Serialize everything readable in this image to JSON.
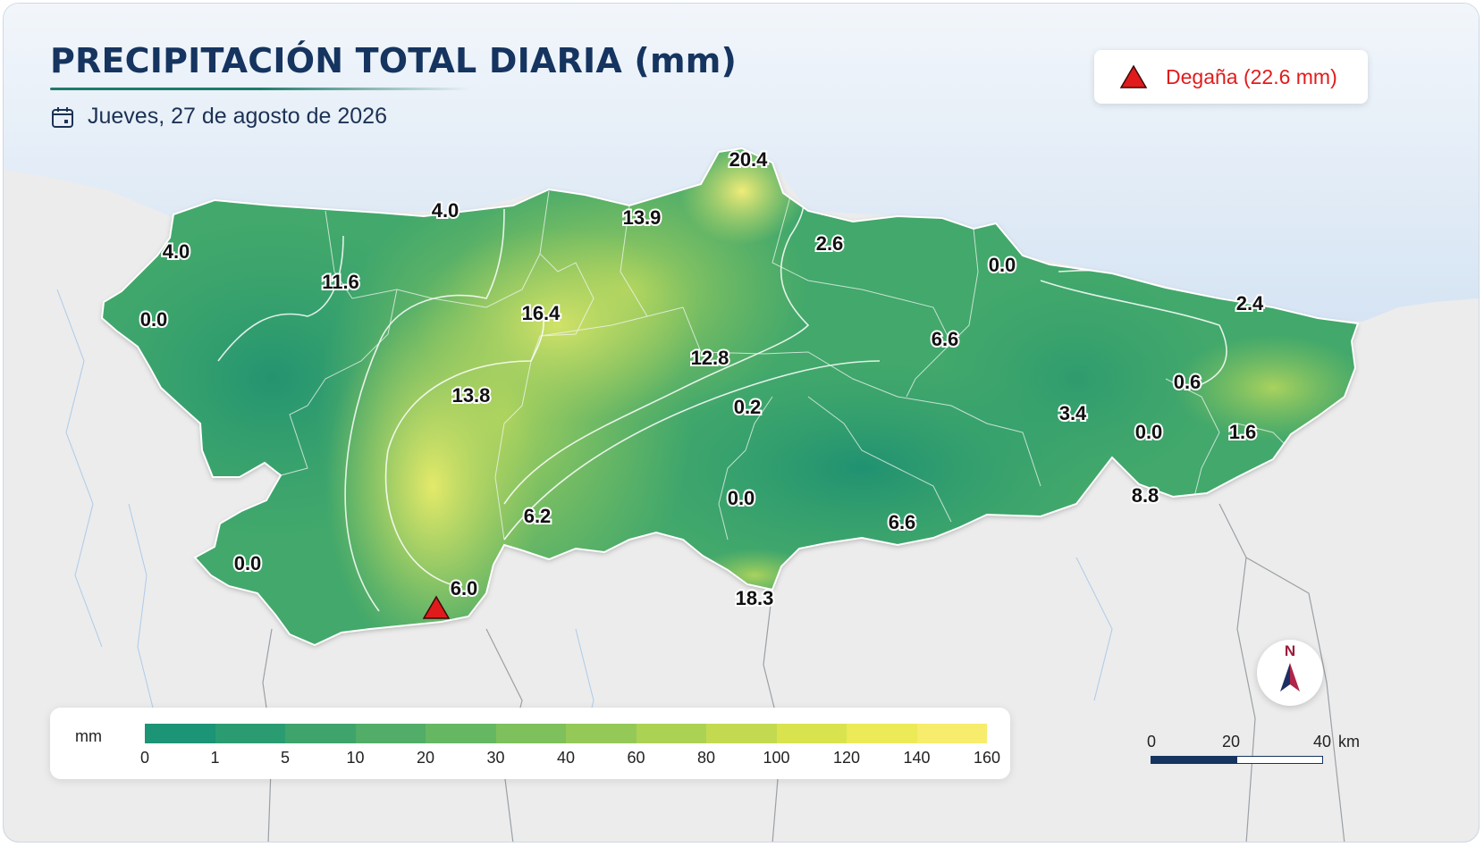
{
  "header": {
    "title": "PRECIPITACIÓN TOTAL DIARIA (mm)",
    "date": "Jueves, 27 de agosto de 2026"
  },
  "station_highlight": {
    "label": "Degaña (22.6 mm)",
    "color": "#e21b1b",
    "icon": "red-triangle-icon"
  },
  "map_labels": [
    {
      "id": "l01",
      "text": "20.4"
    },
    {
      "id": "l02",
      "text": "4.0"
    },
    {
      "id": "l03",
      "text": "13.9"
    },
    {
      "id": "l04",
      "text": "4.0"
    },
    {
      "id": "l05",
      "text": "2.6"
    },
    {
      "id": "l06",
      "text": "0.0"
    },
    {
      "id": "l07",
      "text": "11.6"
    },
    {
      "id": "l08",
      "text": "2.4"
    },
    {
      "id": "l09",
      "text": "0.0"
    },
    {
      "id": "l10",
      "text": "16.4"
    },
    {
      "id": "l11",
      "text": "6.6"
    },
    {
      "id": "l12",
      "text": "12.8"
    },
    {
      "id": "l13",
      "text": "13.8"
    },
    {
      "id": "l14",
      "text": "0.6"
    },
    {
      "id": "l15",
      "text": "0.2"
    },
    {
      "id": "l16",
      "text": "3.4"
    },
    {
      "id": "l17",
      "text": "0.0"
    },
    {
      "id": "l18",
      "text": "1.6"
    },
    {
      "id": "l19",
      "text": "8.8"
    },
    {
      "id": "l20",
      "text": "0.0"
    },
    {
      "id": "l21",
      "text": "6.2"
    },
    {
      "id": "l22",
      "text": "6.6"
    },
    {
      "id": "l23",
      "text": "0.0"
    },
    {
      "id": "l24",
      "text": "6.0"
    },
    {
      "id": "l25",
      "text": "18.3"
    }
  ],
  "legend": {
    "unit": "mm",
    "ticks": [
      "0",
      "1",
      "5",
      "10",
      "20",
      "30",
      "40",
      "60",
      "80",
      "100",
      "120",
      "140",
      "160"
    ],
    "colors": [
      "#1c9476",
      "#2b9c72",
      "#3ea46c",
      "#51ad67",
      "#66b762",
      "#7dc05c",
      "#95c957",
      "#acd253",
      "#c3da50",
      "#d9e34e",
      "#ecea56",
      "#f7ec6c"
    ]
  },
  "compass": {
    "label": "N"
  },
  "scale_bar": {
    "labels": [
      "0",
      "20",
      "40"
    ],
    "unit": "km"
  }
}
